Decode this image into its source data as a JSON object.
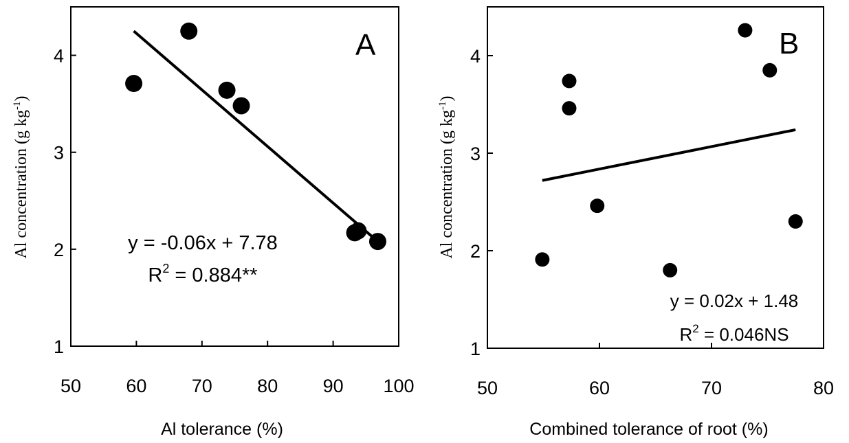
{
  "chart_data": [
    {
      "type": "scatter",
      "panel_label": "A",
      "xlabel": "Al tolerance (%)",
      "ylabel_main": "Al concentration (g kg",
      "ylabel_sup": "-1",
      "ylabel_end": ")",
      "xlim": [
        50,
        100
      ],
      "ylim": [
        1,
        4.5
      ],
      "xticks": [
        50,
        60,
        70,
        80,
        90,
        100
      ],
      "yticks": [
        1,
        2,
        3,
        4
      ],
      "points": [
        {
          "x": 59.6,
          "y": 3.71
        },
        {
          "x": 68.0,
          "y": 4.25
        },
        {
          "x": 73.8,
          "y": 3.64
        },
        {
          "x": 76.0,
          "y": 3.48
        },
        {
          "x": 93.3,
          "y": 2.17
        },
        {
          "x": 93.8,
          "y": 2.19
        },
        {
          "x": 96.8,
          "y": 2.08
        }
      ],
      "trendline": {
        "x": [
          59.6,
          96.8
        ],
        "y": [
          4.25,
          2.08
        ]
      },
      "equation": "y = -0.06x + 7.78",
      "r2_prefix": "R",
      "r2_sup": "2",
      "r2_value": " = 0.884**"
    },
    {
      "type": "scatter",
      "panel_label": "B",
      "xlabel": "Combined tolerance of root (%)",
      "ylabel_main": "Al concentration (g kg",
      "ylabel_sup": "-1",
      "ylabel_end": ")",
      "xlim": [
        50,
        80
      ],
      "ylim": [
        1,
        4.5
      ],
      "xticks": [
        50,
        60,
        70,
        80
      ],
      "yticks": [
        1,
        2,
        3,
        4
      ],
      "points": [
        {
          "x": 54.9,
          "y": 1.91
        },
        {
          "x": 57.3,
          "y": 3.74
        },
        {
          "x": 57.3,
          "y": 3.46
        },
        {
          "x": 59.8,
          "y": 2.46
        },
        {
          "x": 66.3,
          "y": 1.8
        },
        {
          "x": 73.0,
          "y": 4.26
        },
        {
          "x": 75.2,
          "y": 3.85
        },
        {
          "x": 77.5,
          "y": 2.3
        }
      ],
      "trendline": {
        "x": [
          54.9,
          77.5
        ],
        "y": [
          2.72,
          3.24
        ]
      },
      "equation": "y = 0.02x + 1.48",
      "r2_prefix": "R",
      "r2_sup": "2",
      "r2_value": " = 0.046NS"
    }
  ]
}
